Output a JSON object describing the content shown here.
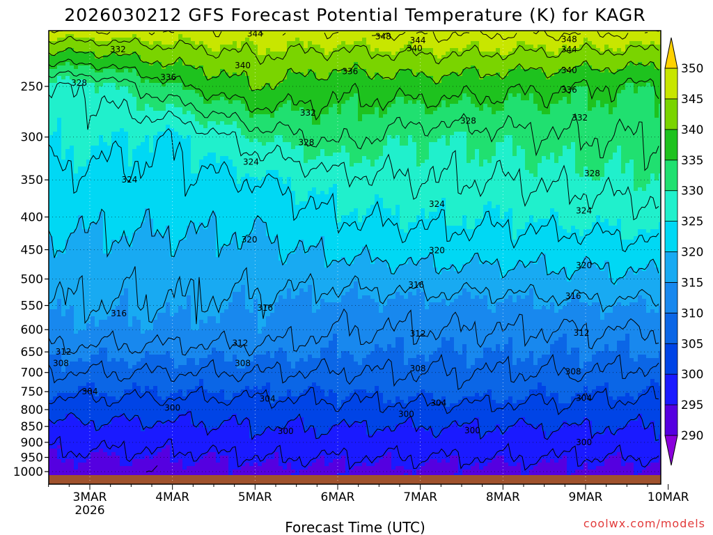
{
  "title": "2026030212 GFS Forecast Potential Temperature (K) for KAGR",
  "x_axis_title": "Forecast Time (UTC)",
  "credit": "coolwx.com/models",
  "chart_data": {
    "type": "heatmap",
    "title": "2026030212 GFS Forecast Potential Temperature (K) for KAGR",
    "xlabel": "Forecast Time (UTC)",
    "ylabel": "",
    "y_scale": "log-pressure",
    "y_reversed": true,
    "y_ticks": [
      250,
      300,
      350,
      400,
      450,
      500,
      550,
      600,
      650,
      700,
      750,
      800,
      850,
      900,
      950,
      1000
    ],
    "x_ticks": [
      {
        "label": "3MAR",
        "sub": "2026",
        "day": 3
      },
      {
        "label": "4MAR",
        "sub": "",
        "day": 4
      },
      {
        "label": "5MAR",
        "sub": "",
        "day": 5
      },
      {
        "label": "6MAR",
        "sub": "",
        "day": 6
      },
      {
        "label": "7MAR",
        "sub": "",
        "day": 7
      },
      {
        "label": "8MAR",
        "sub": "",
        "day": 8
      },
      {
        "label": "9MAR",
        "sub": "",
        "day": 9
      },
      {
        "label": "10MAR",
        "sub": "",
        "day": 10
      }
    ],
    "xlim_days": [
      2.5,
      10.0
    ],
    "ylim_hpa": [
      200,
      1025
    ],
    "ground_color": "#a0522d",
    "grid": "dotted",
    "colorbar": {
      "placement": "right",
      "ticks": [
        290,
        295,
        300,
        305,
        310,
        315,
        320,
        325,
        330,
        335,
        340,
        345,
        350
      ],
      "colors": [
        "#8a00dc",
        "#5500e0",
        "#1a1aff",
        "#0044e6",
        "#0b66e6",
        "#1888ee",
        "#18aaf2",
        "#00d8f4",
        "#20f0cc",
        "#20e070",
        "#1ec21e",
        "#7ad400",
        "#c8e600",
        "#f0f000",
        "#ffd200"
      ]
    },
    "contour_interval": 4,
    "profiles": [
      {
        "pressure": 200,
        "day3": 350,
        "day4": 349,
        "day5": 348,
        "day6": 349,
        "day7": 350,
        "day8": 350,
        "day9": 350,
        "day10": 350
      },
      {
        "pressure": 250,
        "day3": 328,
        "day4": 335,
        "day5": 340,
        "day6": 337,
        "day7": 338,
        "day8": 337,
        "day9": 336,
        "day10": 335
      },
      {
        "pressure": 300,
        "day3": 326,
        "day4": 324,
        "day5": 330,
        "day6": 333,
        "day7": 330,
        "day8": 331,
        "day9": 332,
        "day10": 332
      },
      {
        "pressure": 350,
        "day3": 323,
        "day4": 323,
        "day5": 324,
        "day6": 327,
        "day7": 328,
        "day8": 328,
        "day9": 329,
        "day10": 330
      },
      {
        "pressure": 400,
        "day3": 321,
        "day4": 321,
        "day5": 321,
        "day6": 324,
        "day7": 325,
        "day8": 325,
        "day9": 326,
        "day10": 327
      },
      {
        "pressure": 450,
        "day3": 319,
        "day4": 319,
        "day5": 319,
        "day6": 321,
        "day7": 322,
        "day8": 322,
        "day9": 322,
        "day10": 323
      },
      {
        "pressure": 500,
        "day3": 317,
        "day4": 317,
        "day5": 317,
        "day6": 317,
        "day7": 318,
        "day8": 318,
        "day9": 319,
        "day10": 319
      },
      {
        "pressure": 550,
        "day3": 316,
        "day4": 316,
        "day5": 315,
        "day6": 314,
        "day7": 314,
        "day8": 314,
        "day9": 315,
        "day10": 315
      },
      {
        "pressure": 600,
        "day3": 314,
        "day4": 314,
        "day5": 314,
        "day6": 312,
        "day7": 312,
        "day8": 312,
        "day9": 312,
        "day10": 312
      },
      {
        "pressure": 650,
        "day3": 311,
        "day4": 311,
        "day5": 311,
        "day6": 310,
        "day7": 310,
        "day8": 310,
        "day9": 310,
        "day10": 310
      },
      {
        "pressure": 700,
        "day3": 308,
        "day4": 308,
        "day5": 308,
        "day6": 308,
        "day7": 308,
        "day8": 308,
        "day9": 308,
        "day10": 307
      },
      {
        "pressure": 750,
        "day3": 305,
        "day4": 305,
        "day5": 305,
        "day6": 305,
        "day7": 306,
        "day8": 306,
        "day9": 305,
        "day10": 305
      },
      {
        "pressure": 800,
        "day3": 302,
        "day4": 302,
        "day5": 302,
        "day6": 303,
        "day7": 303,
        "day8": 303,
        "day9": 303,
        "day10": 302
      },
      {
        "pressure": 850,
        "day3": 299,
        "day4": 299,
        "day5": 300,
        "day6": 300,
        "day7": 300,
        "day8": 300,
        "day9": 300,
        "day10": 300
      },
      {
        "pressure": 900,
        "day3": 297,
        "day4": 297,
        "day5": 298,
        "day6": 298,
        "day7": 298,
        "day8": 298,
        "day9": 298,
        "day10": 298
      },
      {
        "pressure": 950,
        "day3": 295,
        "day4": 295,
        "day5": 296,
        "day6": 296,
        "day7": 296,
        "day8": 296,
        "day9": 296,
        "day10": 296
      },
      {
        "pressure": 1000,
        "day3": 293,
        "day4": 293,
        "day5": 294,
        "day6": 294,
        "day7": 294,
        "day8": 294,
        "day9": 294,
        "day10": 294
      }
    ],
    "contour_labels": [
      {
        "text": "344",
        "day": 5.0,
        "pressure": 207
      },
      {
        "text": "348",
        "day": 6.55,
        "pressure": 209
      },
      {
        "text": "344",
        "day": 6.97,
        "pressure": 212
      },
      {
        "text": "340",
        "day": 6.93,
        "pressure": 218
      },
      {
        "text": "348",
        "day": 8.8,
        "pressure": 211
      },
      {
        "text": "344",
        "day": 8.8,
        "pressure": 219
      },
      {
        "text": "332",
        "day": 3.34,
        "pressure": 219
      },
      {
        "text": "340",
        "day": 4.85,
        "pressure": 232
      },
      {
        "text": "336",
        "day": 6.15,
        "pressure": 237
      },
      {
        "text": "340",
        "day": 8.8,
        "pressure": 236
      },
      {
        "text": "336",
        "day": 3.95,
        "pressure": 242
      },
      {
        "text": "328",
        "day": 2.87,
        "pressure": 247
      },
      {
        "text": "336",
        "day": 8.8,
        "pressure": 253
      },
      {
        "text": "332",
        "day": 5.64,
        "pressure": 275
      },
      {
        "text": "328",
        "day": 7.58,
        "pressure": 283
      },
      {
        "text": "332",
        "day": 8.93,
        "pressure": 280
      },
      {
        "text": "328",
        "day": 5.62,
        "pressure": 306
      },
      {
        "text": "324",
        "day": 4.95,
        "pressure": 328
      },
      {
        "text": "328",
        "day": 9.08,
        "pressure": 342
      },
      {
        "text": "324",
        "day": 3.48,
        "pressure": 350
      },
      {
        "text": "324",
        "day": 7.2,
        "pressure": 382
      },
      {
        "text": "324",
        "day": 8.98,
        "pressure": 391
      },
      {
        "text": "320",
        "day": 4.93,
        "pressure": 434
      },
      {
        "text": "320",
        "day": 7.2,
        "pressure": 451
      },
      {
        "text": "320",
        "day": 8.98,
        "pressure": 476
      },
      {
        "text": "316",
        "day": 6.95,
        "pressure": 511
      },
      {
        "text": "316",
        "day": 8.85,
        "pressure": 532
      },
      {
        "text": "316",
        "day": 5.12,
        "pressure": 555
      },
      {
        "text": "316",
        "day": 3.35,
        "pressure": 566
      },
      {
        "text": "312",
        "day": 6.97,
        "pressure": 609
      },
      {
        "text": "312",
        "day": 8.95,
        "pressure": 607
      },
      {
        "text": "312",
        "day": 4.82,
        "pressure": 630
      },
      {
        "text": "312",
        "day": 2.68,
        "pressure": 650
      },
      {
        "text": "308",
        "day": 2.65,
        "pressure": 677
      },
      {
        "text": "308",
        "day": 4.85,
        "pressure": 677
      },
      {
        "text": "308",
        "day": 6.97,
        "pressure": 690
      },
      {
        "text": "308",
        "day": 8.85,
        "pressure": 698
      },
      {
        "text": "304",
        "day": 3.0,
        "pressure": 750
      },
      {
        "text": "304",
        "day": 5.15,
        "pressure": 770
      },
      {
        "text": "304",
        "day": 8.98,
        "pressure": 768
      },
      {
        "text": "304",
        "day": 7.22,
        "pressure": 781
      },
      {
        "text": "300",
        "day": 4.0,
        "pressure": 795
      },
      {
        "text": "300",
        "day": 6.83,
        "pressure": 813
      },
      {
        "text": "300",
        "day": 5.37,
        "pressure": 865
      },
      {
        "text": "300",
        "day": 7.63,
        "pressure": 862
      },
      {
        "text": "300",
        "day": 8.98,
        "pressure": 900
      }
    ]
  }
}
